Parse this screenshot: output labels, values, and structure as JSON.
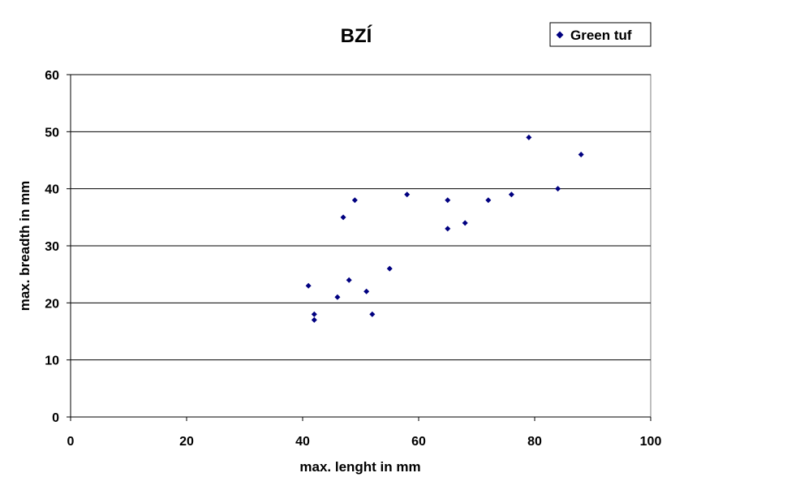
{
  "chart_data": {
    "type": "scatter",
    "title": "BZÍ",
    "xlabel": "max. lenght in mm",
    "ylabel": "max. breadth in mm",
    "xlim": [
      0,
      100
    ],
    "ylim": [
      0,
      60
    ],
    "xticks": [
      0,
      20,
      40,
      60,
      80,
      100
    ],
    "yticks": [
      0,
      10,
      20,
      30,
      40,
      50,
      60
    ],
    "grid": "horizontal",
    "legend_position": "top-right",
    "series": [
      {
        "name": "Green tuf",
        "color": "#000080",
        "marker": "diamond",
        "points": [
          {
            "x": 41,
            "y": 23
          },
          {
            "x": 42,
            "y": 18
          },
          {
            "x": 42,
            "y": 17
          },
          {
            "x": 46,
            "y": 21
          },
          {
            "x": 47,
            "y": 35
          },
          {
            "x": 48,
            "y": 24
          },
          {
            "x": 49,
            "y": 38
          },
          {
            "x": 51,
            "y": 22
          },
          {
            "x": 52,
            "y": 18
          },
          {
            "x": 55,
            "y": 26
          },
          {
            "x": 58,
            "y": 39
          },
          {
            "x": 65,
            "y": 38
          },
          {
            "x": 65,
            "y": 33
          },
          {
            "x": 68,
            "y": 34
          },
          {
            "x": 72,
            "y": 38
          },
          {
            "x": 76,
            "y": 39
          },
          {
            "x": 79,
            "y": 49
          },
          {
            "x": 84,
            "y": 40
          },
          {
            "x": 88,
            "y": 46
          }
        ]
      }
    ]
  }
}
